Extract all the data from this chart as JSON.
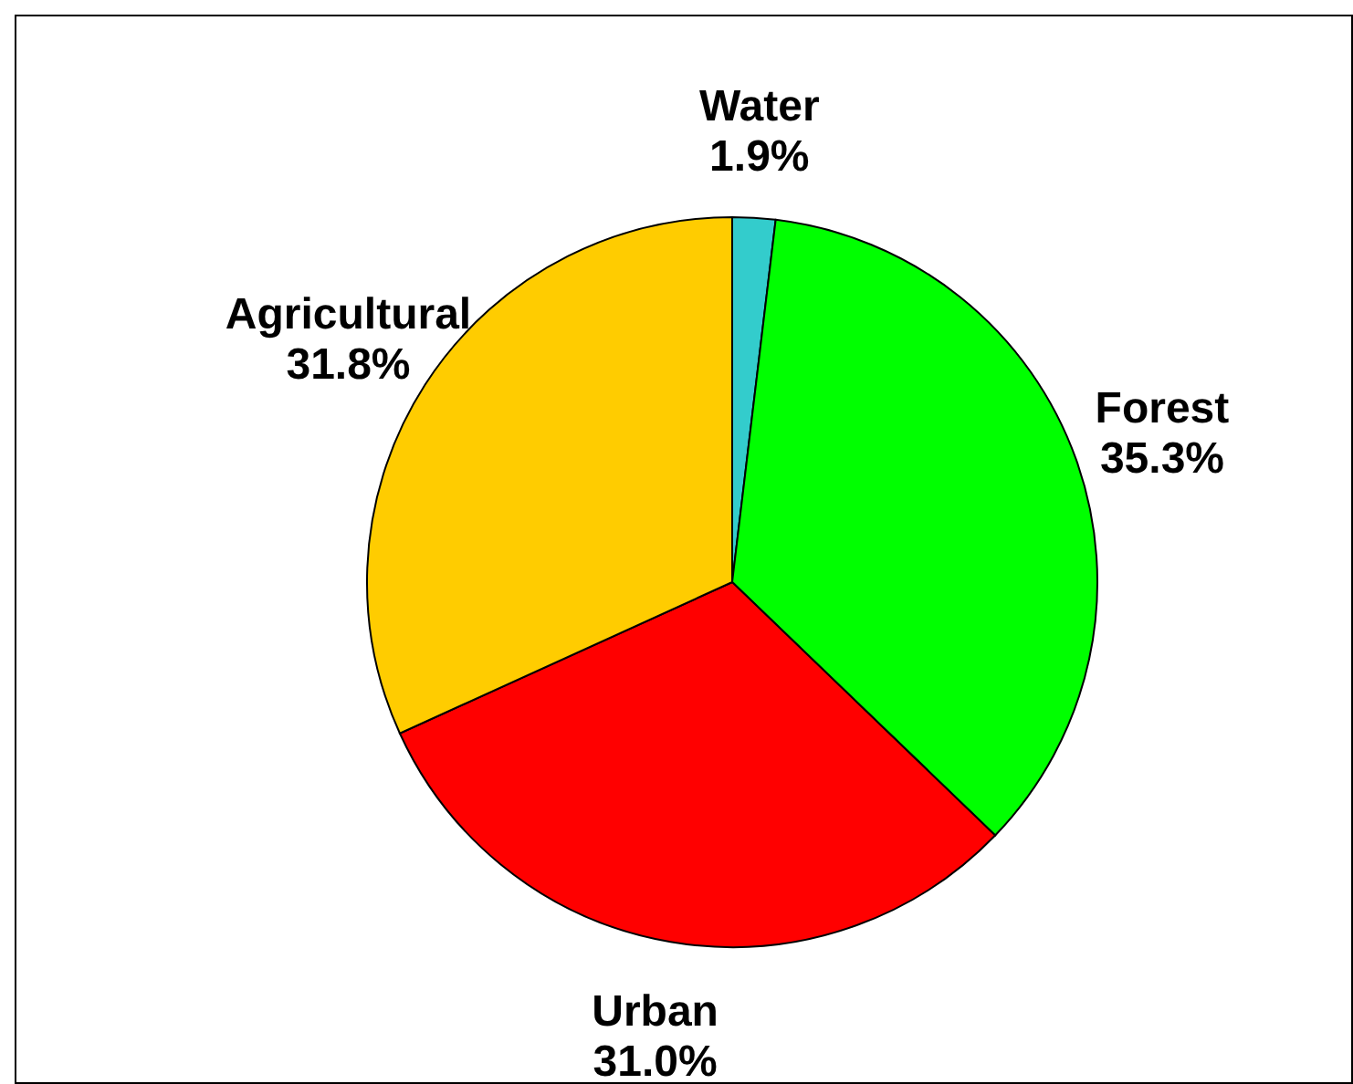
{
  "chart_data": {
    "type": "pie",
    "categories": [
      "Water",
      "Forest",
      "Urban",
      "Agricultural"
    ],
    "values": [
      1.9,
      35.3,
      31.0,
      31.8
    ],
    "value_labels": [
      "1.9%",
      "35.3%",
      "31.0%",
      "31.8%"
    ],
    "colors": [
      "#33cccc",
      "#00ff00",
      "#ff0000",
      "#ffcc00"
    ],
    "legend": false
  }
}
